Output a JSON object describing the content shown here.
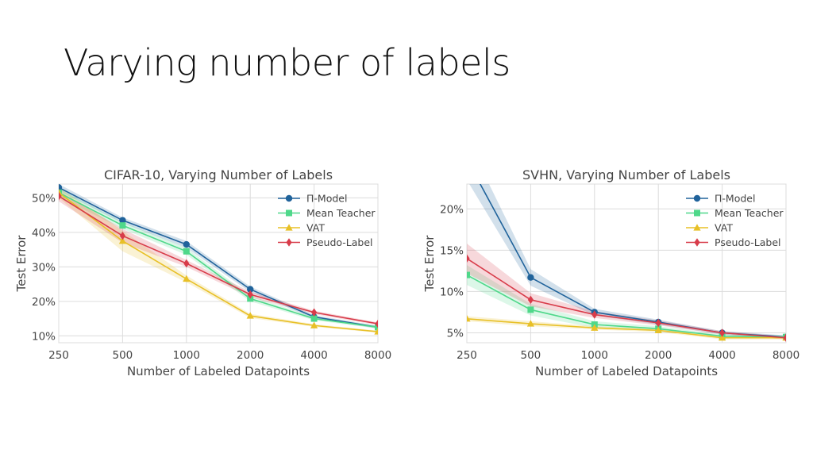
{
  "slide": {
    "title": "Varying number of labels"
  },
  "colors": {
    "pi_model": "#20639b",
    "mean_teacher": "#4fd88a",
    "vat": "#e8c027",
    "pseudo_label": "#d83c4a",
    "grid": "#dcdcdc",
    "text": "#444444"
  },
  "chart_data": [
    {
      "type": "line",
      "title": "CIFAR-10, Varying Number of Labels",
      "xlabel": "Number of Labeled Datapoints",
      "ylabel": "Test Error",
      "x_scale": "log",
      "x": [
        250,
        500,
        1000,
        2000,
        4000,
        8000
      ],
      "x_tick_labels": [
        "250",
        "500",
        "1000",
        "2000",
        "4000",
        "8000"
      ],
      "ylim": [
        8,
        54
      ],
      "y_ticks": [
        10,
        20,
        30,
        40,
        50
      ],
      "y_tick_labels": [
        "10%",
        "20%",
        "30%",
        "40%",
        "50%"
      ],
      "grid": true,
      "legend_position": "top-right",
      "series": [
        {
          "name": "Π-Model",
          "key": "pi_model",
          "marker": "circle",
          "values": [
            53.0,
            43.5,
            36.5,
            23.5,
            15.5,
            12.5
          ],
          "band": [
            1.0,
            0.8,
            1.0,
            0.8,
            0.5,
            0.4
          ]
        },
        {
          "name": "Mean Teacher",
          "key": "mean_teacher",
          "marker": "square",
          "values": [
            51.5,
            42.0,
            34.5,
            20.8,
            15.0,
            12.5
          ],
          "band": [
            1.2,
            1.0,
            1.0,
            0.8,
            0.5,
            0.4
          ]
        },
        {
          "name": "VAT",
          "key": "vat",
          "marker": "triangle",
          "values": [
            51.5,
            37.5,
            26.5,
            15.8,
            13.0,
            11.2
          ],
          "band": [
            1.5,
            3.0,
            1.0,
            0.6,
            0.4,
            0.3
          ]
        },
        {
          "name": "Pseudo-Label",
          "key": "pseudo_label",
          "marker": "diamond",
          "values": [
            50.5,
            39.0,
            31.0,
            22.0,
            16.8,
            13.5
          ],
          "band": [
            1.5,
            2.0,
            1.0,
            0.8,
            0.5,
            0.4
          ]
        }
      ]
    },
    {
      "type": "line",
      "title": "SVHN, Varying Number of Labels",
      "xlabel": "Number of Labeled Datapoints",
      "ylabel": "Test Error",
      "x_scale": "log",
      "x": [
        250,
        500,
        1000,
        2000,
        4000,
        8000
      ],
      "x_tick_labels": [
        "250",
        "500",
        "1000",
        "2000",
        "4000",
        "8000"
      ],
      "ylim": [
        3.8,
        23.0
      ],
      "y_ticks": [
        5,
        10,
        15,
        20
      ],
      "y_tick_labels": [
        "5%",
        "10%",
        "15%",
        "20%"
      ],
      "grid": true,
      "legend_position": "top-right",
      "series": [
        {
          "name": "Π-Model",
          "key": "pi_model",
          "marker": "circle",
          "values": [
            26.0,
            11.7,
            7.5,
            6.3,
            5.0,
            4.5
          ],
          "band": [
            2.5,
            1.0,
            0.4,
            0.3,
            0.2,
            0.2
          ]
        },
        {
          "name": "Mean Teacher",
          "key": "mean_teacher",
          "marker": "square",
          "values": [
            12.0,
            7.8,
            6.0,
            5.5,
            4.6,
            4.5
          ],
          "band": [
            1.2,
            0.7,
            0.4,
            0.3,
            0.2,
            0.2
          ]
        },
        {
          "name": "VAT",
          "key": "vat",
          "marker": "triangle",
          "values": [
            6.7,
            6.1,
            5.6,
            5.3,
            4.4,
            4.4
          ],
          "band": [
            0.3,
            0.3,
            0.2,
            0.2,
            0.2,
            0.2
          ]
        },
        {
          "name": "Pseudo-Label",
          "key": "pseudo_label",
          "marker": "diamond",
          "values": [
            14.0,
            9.0,
            7.2,
            6.2,
            5.0,
            4.4
          ],
          "band": [
            1.8,
            0.8,
            0.4,
            0.3,
            0.2,
            0.2
          ]
        }
      ]
    }
  ]
}
